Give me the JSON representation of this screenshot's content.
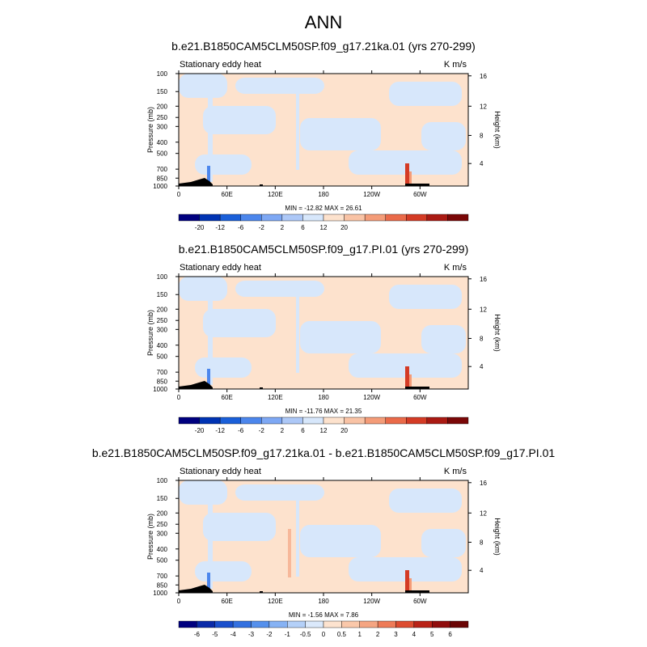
{
  "main_title": "ANN",
  "chart_data": [
    {
      "type": "heatmap",
      "title": "b.e21.B1850CAM5CLM50SP.f09_g17.21ka.01 (yrs 270-299)",
      "left_label": "Stationary eddy heat",
      "units": "K m/s",
      "ylabel": "Pressure (mb)",
      "ylabel_right": "Height (km)",
      "x_ticks": [
        "0",
        "60E",
        "120E",
        "180",
        "120W",
        "60W"
      ],
      "y_ticks": [
        "100",
        "150",
        "200",
        "250",
        "300",
        "400",
        "500",
        "700",
        "850",
        "1000"
      ],
      "height_ticks": [
        "4",
        "8",
        "12",
        "16"
      ],
      "stats": "MIN = -12.82  MAX =  26.61",
      "min": -12.82,
      "max": 26.61,
      "colorbar_labels": [
        "-20",
        "-12",
        "-6",
        "-2",
        "2",
        "6",
        "12",
        "20"
      ]
    },
    {
      "type": "heatmap",
      "title": "b.e21.B1850CAM5CLM50SP.f09_g17.PI.01 (yrs 270-299)",
      "left_label": "Stationary eddy heat",
      "units": "K m/s",
      "ylabel": "Pressure (mb)",
      "ylabel_right": "Height (km)",
      "x_ticks": [
        "0",
        "60E",
        "120E",
        "180",
        "120W",
        "60W"
      ],
      "y_ticks": [
        "100",
        "150",
        "200",
        "250",
        "300",
        "400",
        "500",
        "700",
        "850",
        "1000"
      ],
      "height_ticks": [
        "4",
        "8",
        "12",
        "16"
      ],
      "stats": "MIN = -11.76  MAX =  21.35",
      "min": -11.76,
      "max": 21.35,
      "colorbar_labels": [
        "-20",
        "-12",
        "-6",
        "-2",
        "2",
        "6",
        "12",
        "20"
      ]
    },
    {
      "type": "heatmap",
      "title": "b.e21.B1850CAM5CLM50SP.f09_g17.21ka.01 - b.e21.B1850CAM5CLM50SP.f09_g17.PI.01",
      "left_label": "Stationary eddy heat",
      "units": "K m/s",
      "ylabel": "Pressure (mb)",
      "ylabel_right": "Height (km)",
      "x_ticks": [
        "0",
        "60E",
        "120E",
        "180",
        "120W",
        "60W"
      ],
      "y_ticks": [
        "100",
        "150",
        "200",
        "250",
        "300",
        "400",
        "500",
        "700",
        "850",
        "1000"
      ],
      "height_ticks": [
        "4",
        "8",
        "12",
        "16"
      ],
      "stats": "MIN = -1.56  MAX =  7.86",
      "min": -1.56,
      "max": 7.86,
      "colorbar_labels": [
        "-6",
        "-5",
        "-4",
        "-3",
        "-2",
        "-1",
        "-0.5",
        "0",
        "0.5",
        "1",
        "2",
        "3",
        "4",
        "5",
        "6"
      ]
    }
  ],
  "colorbar_colors": [
    "#00007f",
    "#0033b3",
    "#1a5fd9",
    "#4c86ec",
    "#7ea8f4",
    "#adc8f7",
    "#d7e7fb",
    "#fde2cd",
    "#f9c3a5",
    "#f49c78",
    "#ea6a49",
    "#d43b25",
    "#aa1a13",
    "#7a0707"
  ],
  "diff_colorbar_colors": [
    "#00007f",
    "#0a2aa8",
    "#1a4fcc",
    "#3370e0",
    "#5590ec",
    "#86b2f4",
    "#b4d0f8",
    "#dbe9fb",
    "#fde3cf",
    "#fac8aa",
    "#f5a582",
    "#ee7b58",
    "#dd4c30",
    "#b92217",
    "#900d0d",
    "#6a0505"
  ],
  "field_colors": {
    "neg": "#d7e7fb",
    "pos": "#fde2cd",
    "neg_mid": "#adc8f7",
    "neg_strong": "#4c86ec",
    "pos_mid": "#f49c78",
    "pos_strong": "#d43b25",
    "terrain": "#000000"
  }
}
